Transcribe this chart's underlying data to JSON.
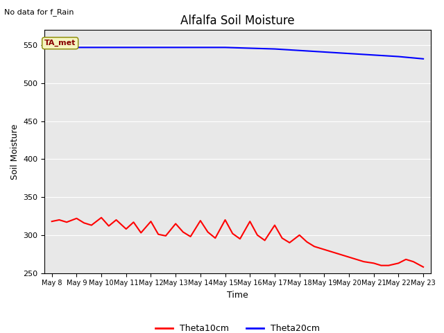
{
  "title": "Alfalfa Soil Moisture",
  "subtitle": "No data for f_Rain",
  "xlabel": "Time",
  "ylabel": "Soil Moisture",
  "ylim": [
    250,
    570
  ],
  "yticks": [
    250,
    300,
    350,
    400,
    450,
    500,
    550
  ],
  "bg_color": "#e8e8e8",
  "annotation_text": "TA_met",
  "legend_labels": [
    "Theta10cm",
    "Theta20cm"
  ],
  "legend_colors": [
    "#ff0000",
    "#0000ff"
  ],
  "x_tick_labels": [
    "May 8",
    "May 9",
    "May 10",
    "May 11",
    "May 12",
    "May 13",
    "May 14",
    "May 15",
    "May 16",
    "May 17",
    "May 18",
    "May 19",
    "May 20",
    "May 21",
    "May 22",
    "May 23"
  ],
  "theta10_x": [
    0,
    0.3,
    0.6,
    1.0,
    1.3,
    1.6,
    2.0,
    2.3,
    2.6,
    3.0,
    3.3,
    3.6,
    4.0,
    4.3,
    4.6,
    5.0,
    5.3,
    5.6,
    6.0,
    6.3,
    6.6,
    7.0,
    7.3,
    7.6,
    8.0,
    8.3,
    8.6,
    9.0,
    9.3,
    9.6,
    10.0,
    10.3,
    10.6,
    11.0,
    11.3,
    11.6,
    12.0,
    12.3,
    12.6,
    13.0,
    13.3,
    13.6,
    14.0,
    14.3,
    14.6,
    15.0
  ],
  "theta10_y": [
    318,
    320,
    317,
    322,
    316,
    313,
    323,
    312,
    320,
    308,
    317,
    303,
    318,
    301,
    299,
    315,
    304,
    298,
    319,
    304,
    296,
    320,
    302,
    295,
    318,
    300,
    293,
    313,
    296,
    290,
    300,
    291,
    285,
    281,
    278,
    275,
    271,
    268,
    265,
    263,
    260,
    260,
    263,
    268,
    265,
    258
  ],
  "theta20_x": [
    0,
    1,
    2,
    3,
    4,
    5,
    6,
    7,
    8,
    9,
    10,
    11,
    12,
    13,
    14,
    15
  ],
  "theta20_y": [
    548,
    547,
    547,
    547,
    547,
    547,
    547,
    547,
    546,
    545,
    543,
    541,
    539,
    537,
    535,
    532
  ]
}
